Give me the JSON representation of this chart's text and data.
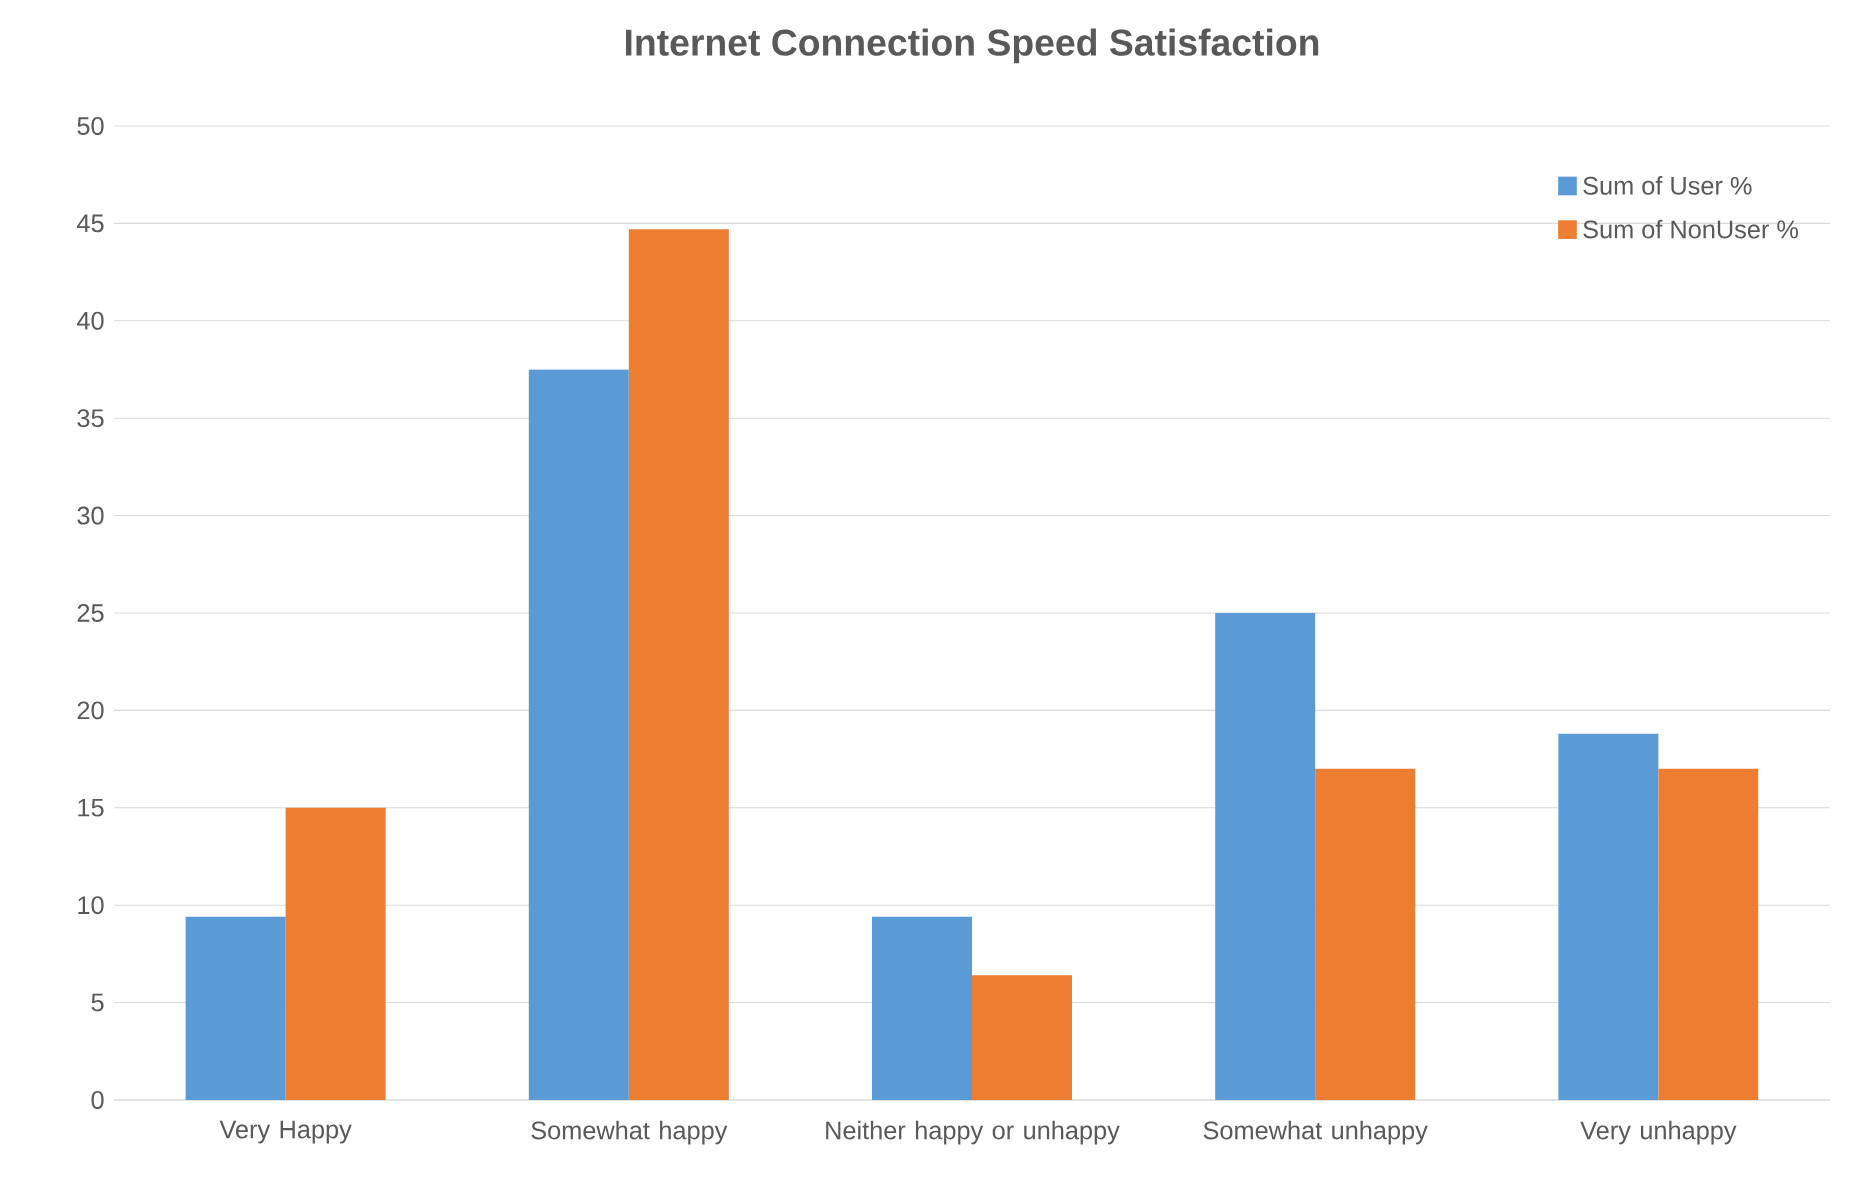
{
  "chart_data": {
    "type": "bar",
    "title": "Internet Connection Speed Satisfaction",
    "categories": [
      "Very Happy",
      "Somewhat happy",
      "Neither happy or unhappy",
      "Somewhat unhappy",
      "Very unhappy"
    ],
    "series": [
      {
        "name": "Sum of User %",
        "color": "#5b9bd5",
        "values": [
          9.4,
          37.5,
          9.4,
          25,
          18.8
        ]
      },
      {
        "name": "Sum of NonUser %",
        "color": "#ed7d31",
        "values": [
          15,
          44.7,
          6.4,
          17,
          17
        ]
      }
    ],
    "ylim": [
      0,
      50
    ],
    "yticks": [
      0,
      5,
      10,
      15,
      20,
      25,
      30,
      35,
      40,
      45,
      50
    ],
    "grid": "y",
    "legend": "top right"
  }
}
